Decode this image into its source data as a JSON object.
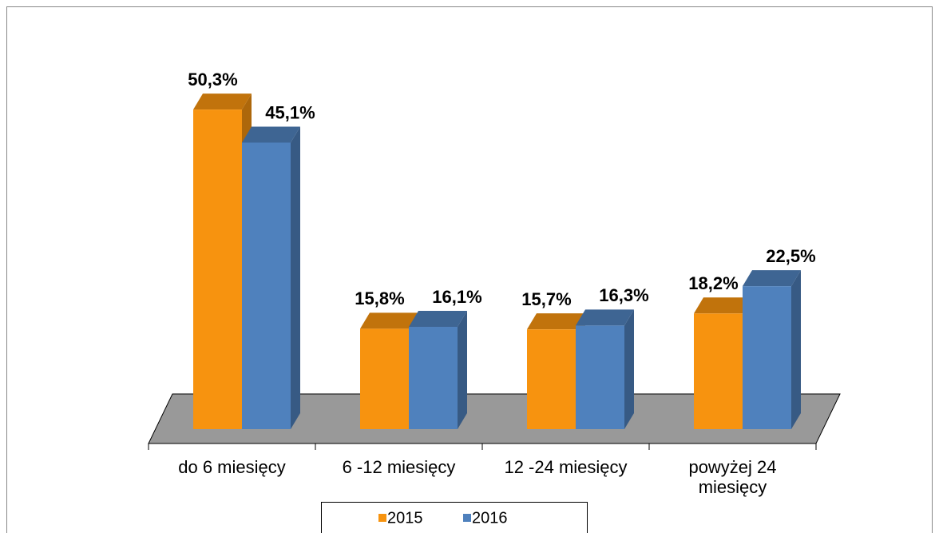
{
  "chart_data": {
    "type": "bar3d",
    "categories": [
      "do 6 miesięcy",
      "6 -12 miesięcy",
      "12 -24 miesięcy",
      "powyżej 24 miesięcy"
    ],
    "series": [
      {
        "name": "2015",
        "color": "#f7930f",
        "values": [
          50.3,
          15.8,
          15.7,
          18.2
        ],
        "value_labels": [
          "50,3%",
          "15,8%",
          "15,7%",
          "18,2%"
        ]
      },
      {
        "name": "2016",
        "color": "#4f81bd",
        "values": [
          45.1,
          16.1,
          16.3,
          22.5
        ],
        "value_labels": [
          "45,1%",
          "16,1%",
          "16,3%",
          "22,5%"
        ]
      }
    ],
    "ylim": [
      0,
      60
    ]
  }
}
